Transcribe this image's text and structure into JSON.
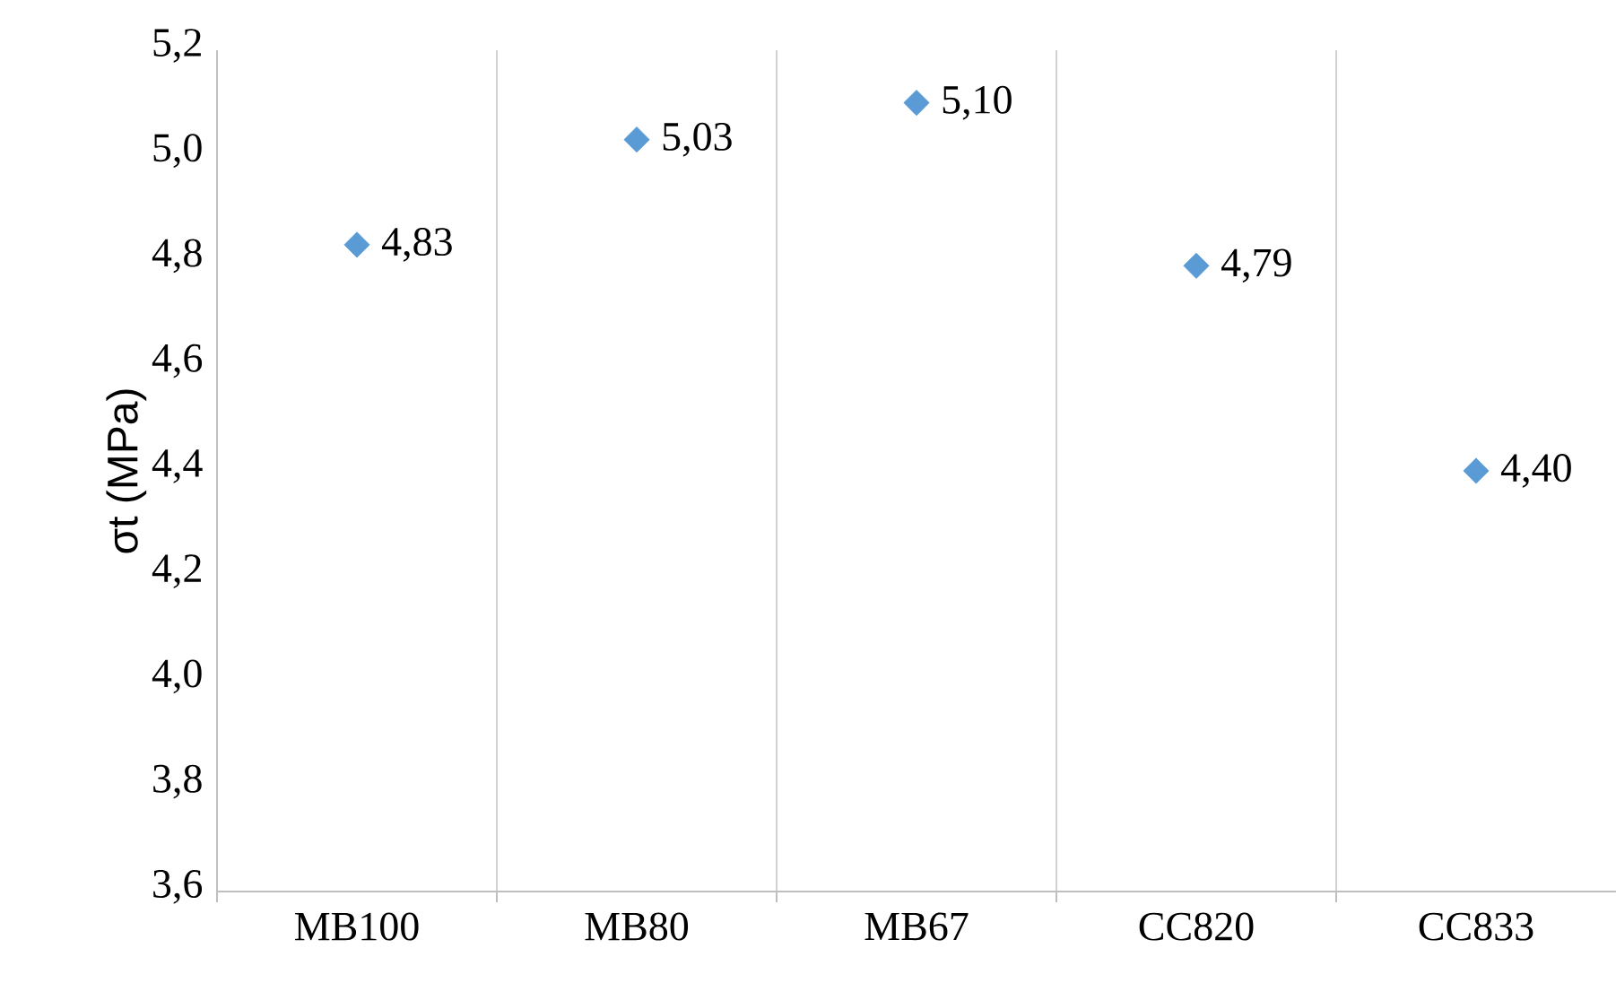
{
  "chart_data": {
    "type": "scatter",
    "ylabel": "σt (MPa)",
    "categories": [
      "MB100",
      "MB80",
      "MB67",
      "CC820",
      "CC833"
    ],
    "values": [
      4.83,
      5.03,
      5.1,
      4.79,
      4.4
    ],
    "value_labels": [
      "4,83",
      "5,03",
      "5,10",
      "4,79",
      "4,40"
    ],
    "color": "#5b9bd5",
    "marker": "diamond",
    "grid": "x",
    "ylim": [
      3.6,
      5.2
    ],
    "yticks": [
      {
        "value": 3.6,
        "label": "3,6"
      },
      {
        "value": 3.8,
        "label": "3,8"
      },
      {
        "value": 4.0,
        "label": "4,0"
      },
      {
        "value": 4.2,
        "label": "4,2"
      },
      {
        "value": 4.4,
        "label": "4,4"
      },
      {
        "value": 4.6,
        "label": "4,6"
      },
      {
        "value": 4.8,
        "label": "4,8"
      },
      {
        "value": 5.0,
        "label": "5,0"
      },
      {
        "value": 5.2,
        "label": "5,2"
      }
    ]
  }
}
